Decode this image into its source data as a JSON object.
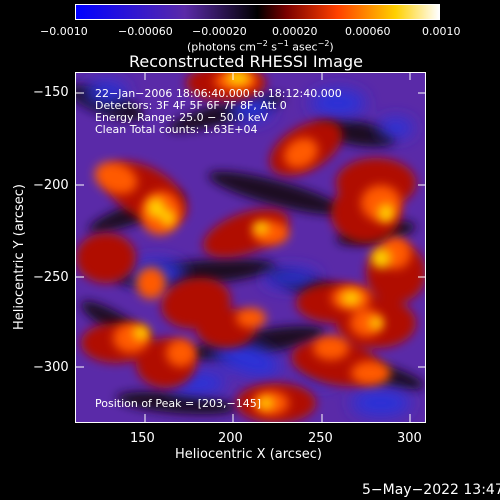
{
  "colorbar": {
    "ticks": [
      "−0.0010",
      "−0.00060",
      "−0.00020",
      "0.00020",
      "0.00060",
      "0.0010"
    ],
    "units_prefix": "(photons cm",
    "units_exp1": "−2",
    "units_mid": " s",
    "units_exp2": "−1",
    "units_end": " asec",
    "units_exp3": "−2",
    "units_close": ")"
  },
  "title": "Reconstructed RHESSI Image",
  "info": {
    "line1": "22−Jan−2006 18:06:40.000 to 18:12:40.000",
    "line2": "Detectors: 3F 4F 5F 6F 7F 8F, Att 0",
    "line3": "Energy Range: 25.0 − 50.0 keV",
    "line4": "Clean     Total counts: 1.63E+04"
  },
  "peak_label": "Position of Peak = [203,−145]",
  "axes": {
    "xlabel": "Heliocentric X (arcsec)",
    "ylabel": "Heliocentric Y (arcsec)",
    "xticks": [
      "150",
      "200",
      "250",
      "300"
    ],
    "yticks": [
      "−150",
      "−200",
      "−250",
      "−300"
    ]
  },
  "timestamp": "5−May−2022 13:47",
  "colors": {
    "negative_max": "#0000ff",
    "negative_mid": "#5a2aa8",
    "zero": "#000000",
    "positive_low": "#7a0000",
    "positive_mid": "#ff4000",
    "positive_high": "#ffd000",
    "positive_max": "#ffffff"
  }
}
